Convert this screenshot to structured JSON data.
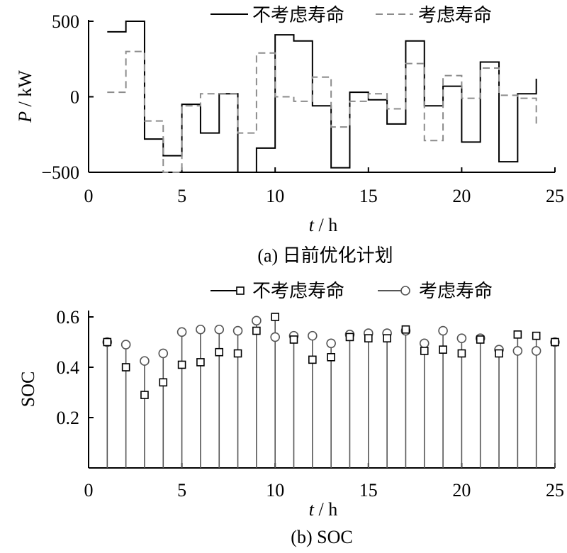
{
  "chart_data": [
    {
      "type": "line",
      "step": "post",
      "caption": "(a)  日前优化计划",
      "ylabel_italic": "P",
      "ylabel_rest": " / kW",
      "xlabel_italic": "t",
      "xlabel_rest": " / h",
      "xlim": [
        0,
        25
      ],
      "ylim": [
        -500,
        500
      ],
      "xticks": [
        "0",
        "5",
        "10",
        "15",
        "20",
        "25"
      ],
      "yticks": [
        "500",
        "0",
        "−500"
      ],
      "legend_placement": "top",
      "series": [
        {
          "name": "不考虑寿命",
          "style": "solid",
          "x": [
            1,
            2,
            3,
            4,
            5,
            6,
            7,
            8,
            9,
            10,
            11,
            12,
            13,
            14,
            15,
            16,
            17,
            18,
            19,
            20,
            21,
            22,
            23,
            24
          ],
          "values": [
            430,
            500,
            -280,
            -390,
            -50,
            -240,
            20,
            -500,
            -340,
            410,
            370,
            -60,
            -470,
            30,
            -20,
            -180,
            370,
            -60,
            70,
            -300,
            230,
            -430,
            20,
            120
          ]
        },
        {
          "name": "考虑寿命",
          "style": "dashed",
          "x": [
            1,
            2,
            3,
            4,
            5,
            6,
            7,
            8,
            9,
            10,
            11,
            12,
            13,
            14,
            15,
            16,
            17,
            18,
            19,
            20,
            21,
            22,
            23,
            24
          ],
          "values": [
            30,
            300,
            -160,
            -500,
            -60,
            20,
            20,
            -240,
            290,
            0,
            -30,
            130,
            -200,
            -30,
            20,
            -80,
            220,
            -290,
            140,
            -10,
            190,
            10,
            -10,
            -190
          ]
        }
      ]
    },
    {
      "type": "scatter",
      "stem": true,
      "caption": "(b)  SOC",
      "ylabel": "SOC",
      "xlabel_italic": "t",
      "xlabel_rest": " / h",
      "xlim": [
        0,
        25
      ],
      "ylim": [
        0,
        0.6
      ],
      "xticks": [
        "0",
        "5",
        "10",
        "15",
        "20",
        "25"
      ],
      "yticks": [
        "0.2",
        "0.4",
        "0.6"
      ],
      "legend_placement": "top",
      "series": [
        {
          "name": "不考虑寿命",
          "marker": "square",
          "x": [
            1,
            2,
            3,
            4,
            5,
            6,
            7,
            8,
            9,
            10,
            11,
            12,
            13,
            14,
            15,
            16,
            17,
            18,
            19,
            20,
            21,
            22,
            23,
            24,
            25
          ],
          "values": [
            0.5,
            0.4,
            0.29,
            0.34,
            0.41,
            0.42,
            0.46,
            0.455,
            0.545,
            0.6,
            0.51,
            0.43,
            0.44,
            0.52,
            0.515,
            0.515,
            0.55,
            0.465,
            0.47,
            0.455,
            0.51,
            0.455,
            0.53,
            0.525,
            0.5
          ]
        },
        {
          "name": "考虑寿命",
          "marker": "circle",
          "x": [
            1,
            2,
            3,
            4,
            5,
            6,
            7,
            8,
            9,
            10,
            11,
            12,
            13,
            14,
            15,
            16,
            17,
            18,
            19,
            20,
            21,
            22,
            23,
            24,
            25
          ],
          "values": [
            0.5,
            0.49,
            0.425,
            0.455,
            0.54,
            0.55,
            0.55,
            0.545,
            0.585,
            0.52,
            0.525,
            0.525,
            0.495,
            0.53,
            0.535,
            0.535,
            0.545,
            0.495,
            0.545,
            0.515,
            0.515,
            0.47,
            0.465,
            0.465,
            0.5
          ]
        }
      ]
    }
  ]
}
